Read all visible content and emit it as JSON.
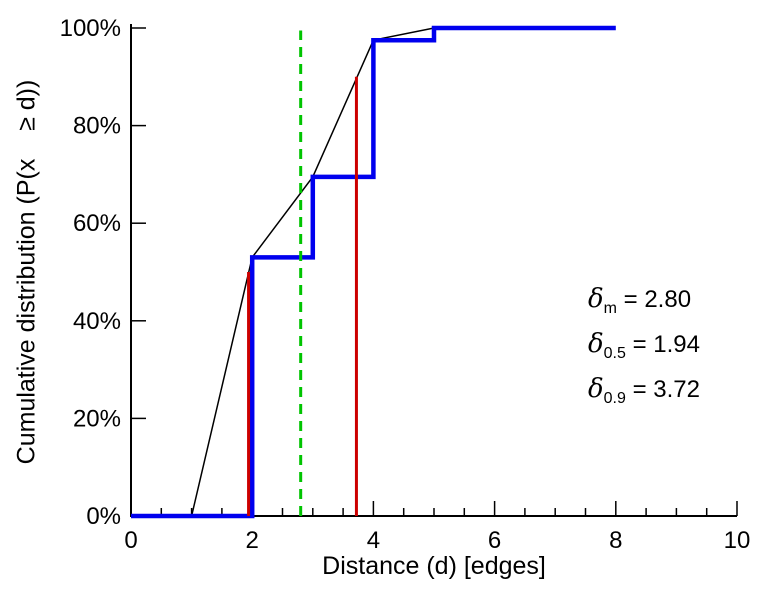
{
  "chart_data": {
    "type": "line",
    "title": "",
    "xlabel": "Distance (d) [edges]",
    "ylabel": "Cumulative distribution (P(x    ≥ d))",
    "xlim": [
      0,
      10
    ],
    "ylim": [
      0,
      100
    ],
    "grid": false,
    "legend": "none",
    "axis_color": "#000000",
    "x_tick_values": [
      0,
      2,
      4,
      6,
      8,
      10
    ],
    "x_tick_labels": [
      "0",
      "2",
      "4",
      "6",
      "8",
      "10"
    ],
    "x_minor_step": 0.5,
    "y_tick_values": [
      0,
      20,
      40,
      60,
      80,
      100
    ],
    "y_tick_labels": [
      "0%",
      "20%",
      "40%",
      "60%",
      "80%",
      "100%"
    ],
    "series": [
      {
        "name": "empirical-cdf-step",
        "color": "#0000ee",
        "stroke_width": 4.5,
        "points": [
          [
            0,
            0
          ],
          [
            2,
            0
          ],
          [
            2,
            53
          ],
          [
            3,
            53
          ],
          [
            3,
            69.5
          ],
          [
            4,
            69.5
          ],
          [
            4,
            97.5
          ],
          [
            5,
            97.5
          ],
          [
            5,
            100
          ],
          [
            8,
            100
          ]
        ]
      },
      {
        "name": "linear-interpolation",
        "color": "#000000",
        "stroke_width": 1.5,
        "points": [
          [
            1,
            0
          ],
          [
            2,
            53
          ],
          [
            3,
            69.5
          ],
          [
            4,
            97.5
          ],
          [
            5,
            100
          ],
          [
            5.7,
            100
          ]
        ]
      }
    ],
    "vlines": [
      {
        "name": "delta-0.5-line",
        "x": 1.94,
        "y_from": 0,
        "y_to": 50,
        "color": "#cc0000",
        "stroke_width": 3,
        "dash": ""
      },
      {
        "name": "delta-0.9-line",
        "x": 3.72,
        "y_from": 0,
        "y_to": 90,
        "color": "#cc0000",
        "stroke_width": 3,
        "dash": ""
      },
      {
        "name": "delta-mean-line",
        "x": 2.8,
        "y_from": 0,
        "y_to": 99.5,
        "color": "#00c400",
        "stroke_width": 3,
        "dash": "10,7"
      }
    ],
    "annotations": [
      {
        "symbol": "δ",
        "sub": "m",
        "rest": " = 2.80"
      },
      {
        "symbol": "δ",
        "sub": "0.5",
        "rest": " = 1.94"
      },
      {
        "symbol": "δ",
        "sub": "0.9",
        "rest": " = 3.72"
      }
    ]
  },
  "colors": {
    "background": "#ffffff",
    "axis": "#000000",
    "cdf_line": "#0000ee",
    "quantile_lines": "#cc0000",
    "mean_line": "#00c400"
  }
}
